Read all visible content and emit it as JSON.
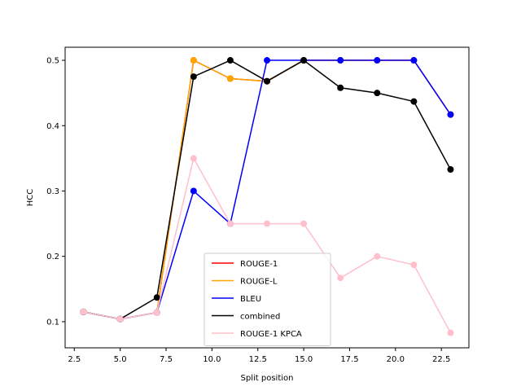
{
  "chart_data": {
    "type": "line",
    "title": "",
    "xlabel": "Split position",
    "ylabel": "HCC",
    "xlim": [
      2.0,
      24.0
    ],
    "ylim": [
      0.06,
      0.52
    ],
    "xticks": [
      2.5,
      5.0,
      7.5,
      10.0,
      12.5,
      15.0,
      17.5,
      20.0,
      22.5
    ],
    "xtick_labels": [
      "2.5",
      "5.0",
      "7.5",
      "10.0",
      "12.5",
      "15.0",
      "17.5",
      "20.0",
      "22.5"
    ],
    "yticks": [
      0.1,
      0.2,
      0.3,
      0.4,
      0.5
    ],
    "ytick_labels": [
      "0.1",
      "0.2",
      "0.3",
      "0.4",
      "0.5"
    ],
    "legend_position": "lower-center",
    "x": [
      3,
      5,
      7,
      9,
      11,
      13,
      15,
      17,
      19,
      21,
      23
    ],
    "series": [
      {
        "name": "ROUGE-1",
        "color": "#ff0000",
        "values": [
          0.115,
          0.104,
          0.114,
          0.5,
          0.472,
          0.468,
          0.5,
          0.5,
          0.5,
          0.5,
          0.417
        ]
      },
      {
        "name": "ROUGE-L",
        "color": "#ffa500",
        "values": [
          0.115,
          0.104,
          0.114,
          0.5,
          0.472,
          0.468,
          0.5,
          0.5,
          0.5,
          0.5,
          0.417
        ]
      },
      {
        "name": "BLEU",
        "color": "#0000ff",
        "values": [
          0.115,
          0.104,
          0.114,
          0.3,
          0.25,
          0.5,
          0.5,
          0.5,
          0.5,
          0.5,
          0.417
        ]
      },
      {
        "name": "combined",
        "color": "#000000",
        "values": [
          0.115,
          0.104,
          0.137,
          0.475,
          0.5,
          0.468,
          0.5,
          0.458,
          0.45,
          0.437,
          0.333
        ]
      },
      {
        "name": "ROUGE-1 KPCA",
        "color": "#ffc0cb",
        "values": [
          0.115,
          0.104,
          0.114,
          0.35,
          0.25,
          0.25,
          0.25,
          0.167,
          0.2,
          0.187,
          0.083
        ]
      }
    ]
  }
}
